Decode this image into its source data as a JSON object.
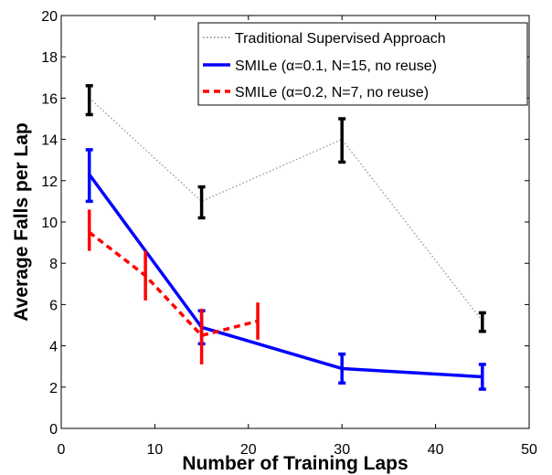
{
  "chart_data": {
    "type": "line",
    "title": "",
    "xlabel": "Number of Training Laps",
    "ylabel": "Average Falls per Lap",
    "xlim": [
      0,
      50
    ],
    "ylim": [
      0,
      20
    ],
    "xticks": [
      "0",
      "10",
      "20",
      "30",
      "40",
      "50"
    ],
    "yticks": [
      "0",
      "2",
      "4",
      "6",
      "8",
      "10",
      "12",
      "14",
      "16",
      "18",
      "20"
    ],
    "grid": false,
    "legend_position": "top-right",
    "series": [
      {
        "name": "Traditional Supervised Approach",
        "color": "#a0a0a0",
        "error_color": "#000000",
        "style": "dotted",
        "points": [
          {
            "x": 3,
            "y": 16.0,
            "err_low": 15.2,
            "err_high": 16.6
          },
          {
            "x": 15,
            "y": 11.0,
            "err_low": 10.2,
            "err_high": 11.7
          },
          {
            "x": 30,
            "y": 14.0,
            "err_low": 12.9,
            "err_high": 15.0
          },
          {
            "x": 45,
            "y": 5.2,
            "err_low": 4.7,
            "err_high": 5.6
          }
        ]
      },
      {
        "name": "SMILe (α=0.1, N=15, no reuse)",
        "color": "#0000ff",
        "error_color": "#0000ff",
        "style": "solid",
        "points": [
          {
            "x": 3,
            "y": 12.3,
            "err_low": 11.0,
            "err_high": 13.5
          },
          {
            "x": 9,
            "y": 8.6,
            "err_low": null,
            "err_high": null
          },
          {
            "x": 15,
            "y": 4.9,
            "err_low": 4.1,
            "err_high": 5.7
          },
          {
            "x": 30,
            "y": 2.9,
            "err_low": 2.2,
            "err_high": 3.6
          },
          {
            "x": 45,
            "y": 2.5,
            "err_low": 1.9,
            "err_high": 3.1
          }
        ]
      },
      {
        "name": "SMILe (α=0.2, N=7, no reuse)",
        "color": "#ff0000",
        "error_color": "#ff0000",
        "style": "dashed",
        "points": [
          {
            "x": 3,
            "y": 9.5,
            "err_low": 8.6,
            "err_high": 10.6
          },
          {
            "x": 9,
            "y": 7.4,
            "err_low": 6.2,
            "err_high": 8.6
          },
          {
            "x": 15,
            "y": 4.5,
            "err_low": 3.1,
            "err_high": 5.8
          },
          {
            "x": 21,
            "y": 5.2,
            "err_low": 4.3,
            "err_high": 6.1
          }
        ]
      }
    ]
  }
}
